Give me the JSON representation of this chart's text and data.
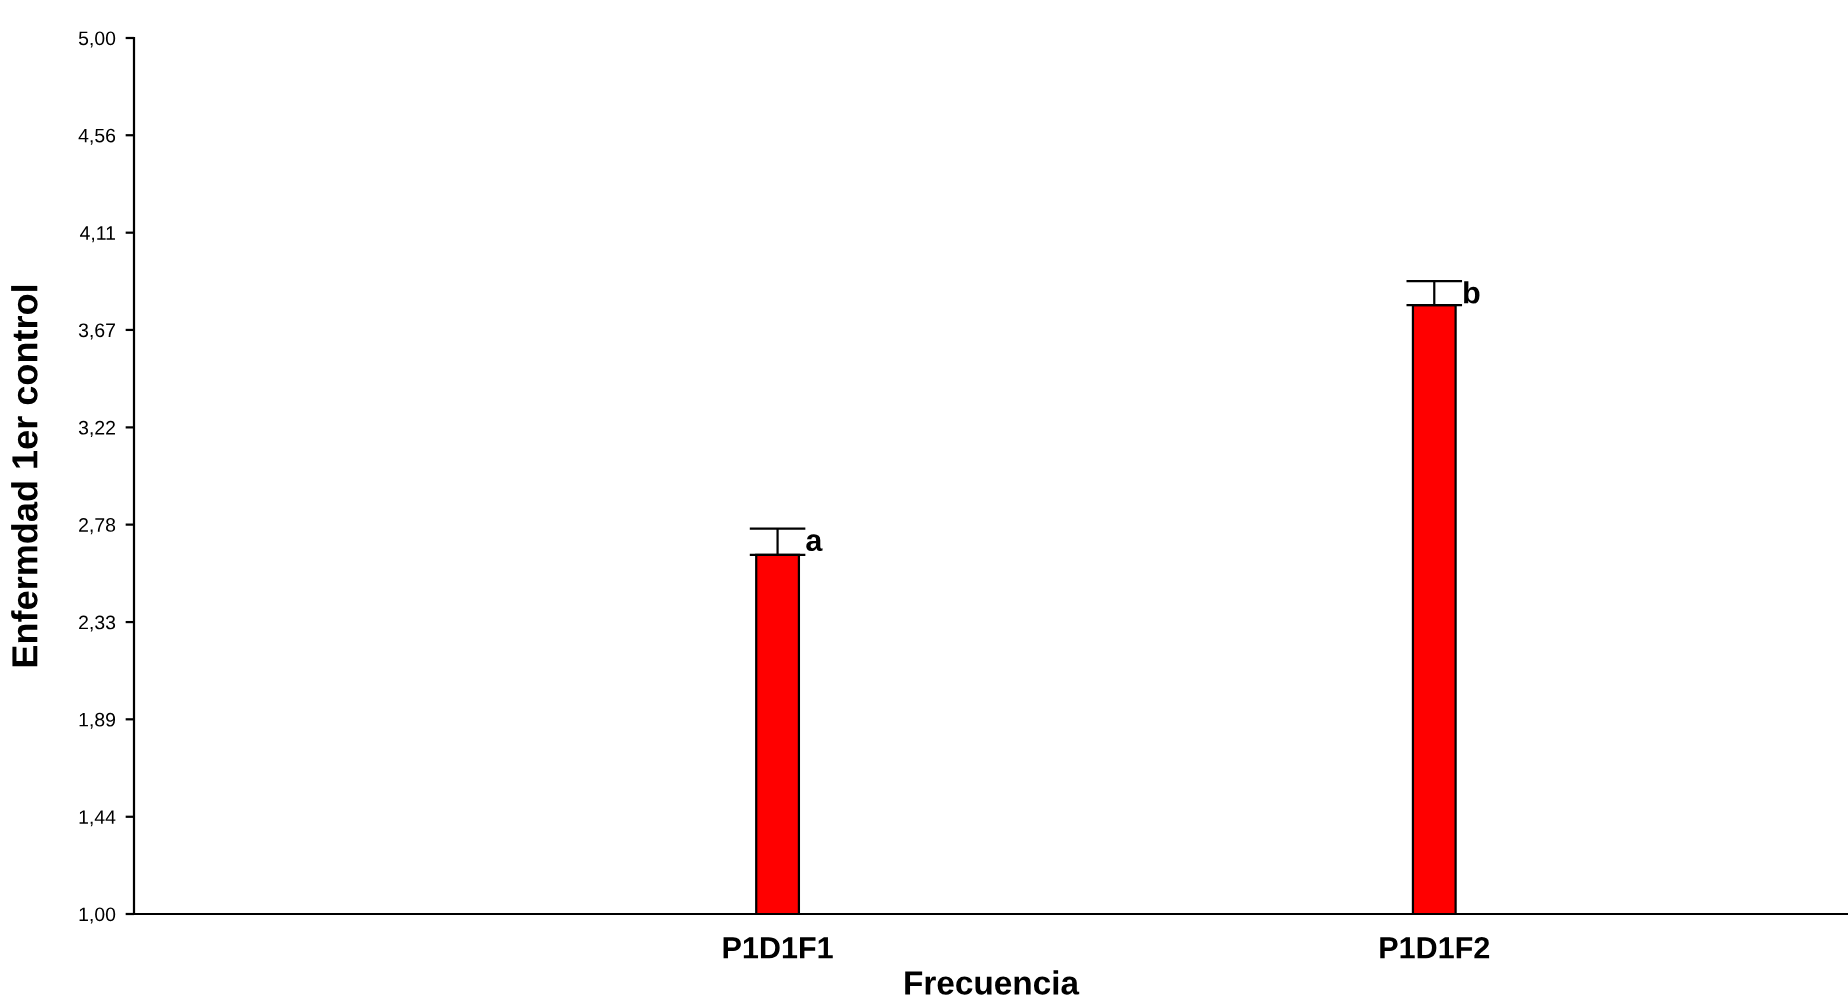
{
  "chart_data": {
    "type": "bar",
    "xlabel": "Frecuencia",
    "ylabel": "Enfermdad 1er control",
    "categories": [
      "P1D1F1",
      "P1D1F2"
    ],
    "values": [
      2.64,
      3.78
    ],
    "errors": [
      [
        2.64,
        2.76
      ],
      [
        3.78,
        3.89
      ]
    ],
    "color": "#ff0000",
    "ylim": [
      1.0,
      5.0
    ],
    "yticks": [
      {
        "value": 1.0,
        "label": "1,00"
      },
      {
        "value": 1.444,
        "label": "1,44"
      },
      {
        "value": 1.889,
        "label": "1,89"
      },
      {
        "value": 2.333,
        "label": "2,33"
      },
      {
        "value": 2.778,
        "label": "2,78"
      },
      {
        "value": 3.222,
        "label": "3,22"
      },
      {
        "value": 3.667,
        "label": "3,67"
      },
      {
        "value": 4.111,
        "label": "4,11"
      },
      {
        "value": 4.556,
        "label": "4,56"
      },
      {
        "value": 5.0,
        "label": "5,00"
      }
    ],
    "annotations": [
      "a",
      "b"
    ],
    "grid": false,
    "legend": false
  }
}
